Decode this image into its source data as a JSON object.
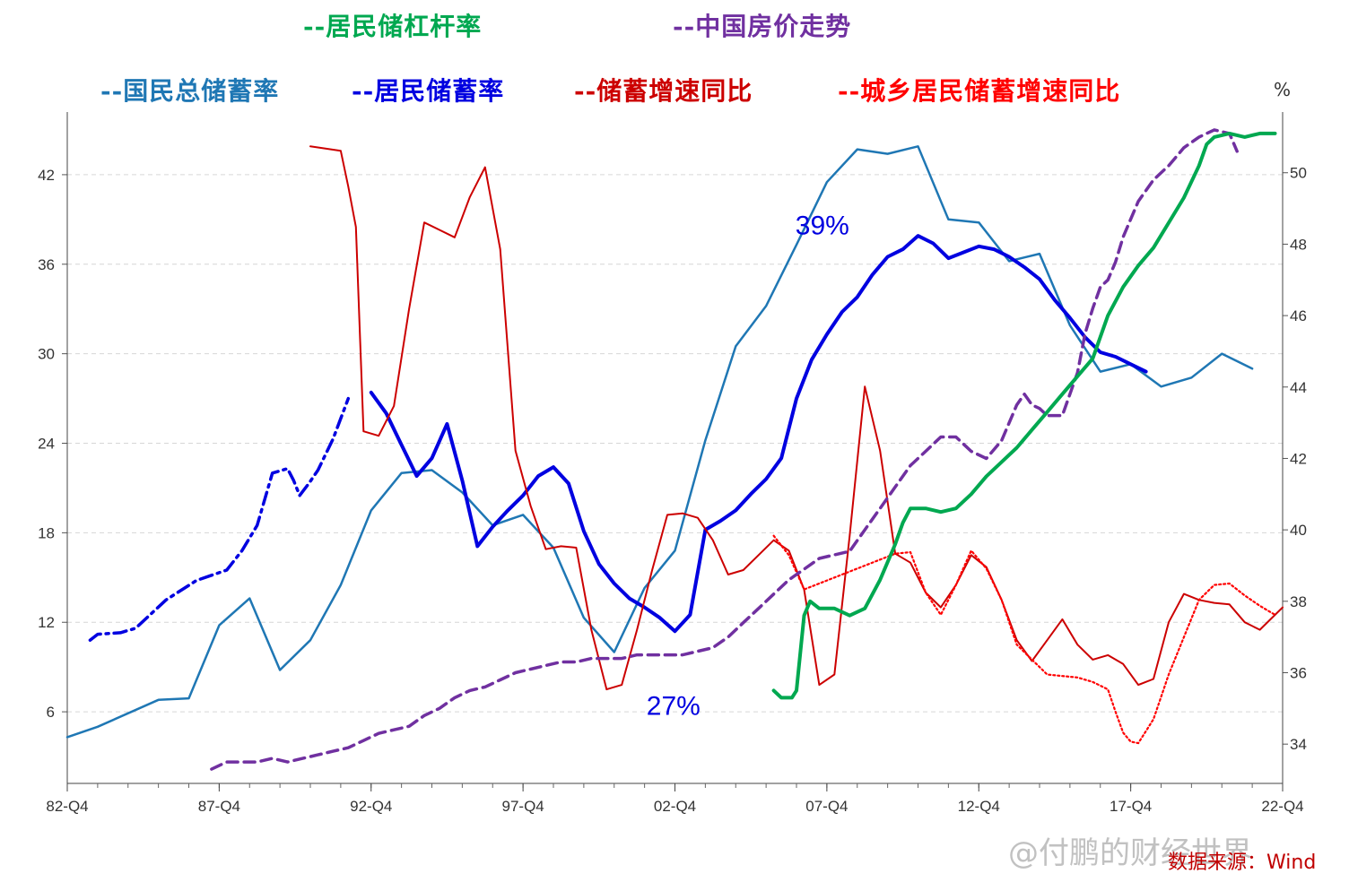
{
  "chart_data": {
    "type": "line",
    "unit": "%",
    "source": "数据来源：Wind",
    "watermark": "@付鹏的财经世界",
    "x_ticks": [
      "82-Q4",
      "87-Q4",
      "92-Q4",
      "97-Q4",
      "02-Q4",
      "07-Q4",
      "12-Q4",
      "17-Q4",
      "22-Q4"
    ],
    "xlim": [
      1982.75,
      2022.75
    ],
    "y_left": {
      "ticks": [
        6,
        12,
        18,
        24,
        30,
        36,
        42
      ],
      "range": [
        1.2,
        46.2
      ]
    },
    "y_right": {
      "ticks": [
        34,
        36,
        38,
        40,
        42,
        44,
        46,
        48,
        50
      ],
      "range": [
        32.9,
        51.7
      ]
    },
    "annotations": [
      {
        "text": "39%",
        "x": 2007.6,
        "y": 38.0,
        "color": "#0000e0"
      },
      {
        "text": "27%",
        "x": 2002.7,
        "y": 5.8,
        "color": "#0000e0"
      }
    ],
    "legend_row1": [
      {
        "label": "--居民储杠杆率",
        "color": "#00a850"
      },
      {
        "label": "--中国房价走势",
        "color": "#7030a0"
      }
    ],
    "legend_row2": [
      {
        "label": "--国民总储蓄率",
        "color": "#1f77b4"
      },
      {
        "label": "--居民储蓄率",
        "color": "#0000e0"
      },
      {
        "label": "--储蓄增速同比",
        "color": "#cc0000"
      },
      {
        "label": "--城乡居民储蓄增速同比",
        "color": "#ff0000"
      }
    ],
    "series": [
      {
        "name": "国民总储蓄率",
        "color": "#1f77b4",
        "axis": "left",
        "dash": "solid",
        "width": 2.5,
        "x": [
          1982.75,
          1983.75,
          1985.75,
          1986.75,
          1987.75,
          1988.75,
          1989.75,
          1990.75,
          1991.75,
          1992.75,
          1993.75,
          1994.75,
          1995.75,
          1996.75,
          1997.75,
          1998.75,
          1999.75,
          2000.75,
          2001.75,
          2002.75,
          2003.75,
          2004.75,
          2005.75,
          2006.75,
          2007.75,
          2008.75,
          2009.75,
          2010.75,
          2011.75,
          2012.75,
          2013.75,
          2014.75,
          2015.75,
          2016.75,
          2017.75,
          2018.75,
          2019.75,
          2020.75,
          2021.75
        ],
        "y": [
          4.3,
          5.0,
          6.8,
          6.9,
          11.8,
          13.6,
          8.8,
          10.8,
          14.5,
          19.5,
          22.0,
          22.2,
          20.7,
          18.5,
          19.2,
          17.0,
          12.3,
          10.0,
          14.3,
          16.8,
          24.2,
          30.5,
          33.2,
          37.3,
          41.5,
          43.7,
          43.4,
          43.9,
          39.0,
          38.8,
          36.2,
          36.7,
          31.9,
          28.8,
          29.3,
          27.8,
          28.4,
          30.0,
          29.0
        ]
      },
      {
        "name": "居民储蓄率（前段）",
        "color": "#0000e0",
        "axis": "left",
        "dash": "dashdot",
        "width": 3.5,
        "x": [
          1983.5,
          1983.75,
          1984.5,
          1985.0,
          1986.0,
          1987.0,
          1988.0,
          1988.5,
          1989.0,
          1989.5,
          1990.0,
          1990.2,
          1990.4,
          1990.7,
          1991.0,
          1991.5,
          1992.0
        ],
        "y": [
          10.8,
          11.2,
          11.3,
          11.6,
          13.5,
          14.8,
          15.5,
          16.8,
          18.5,
          22.0,
          22.3,
          21.5,
          20.5,
          21.3,
          22.2,
          24.3,
          27.0
        ]
      },
      {
        "name": "居民储蓄率",
        "color": "#0000e0",
        "axis": "left",
        "dash": "solid",
        "width": 4,
        "x": [
          1992.75,
          1993.25,
          1993.75,
          1994.25,
          1994.75,
          1995.25,
          1995.75,
          1996.25,
          1996.75,
          1997.25,
          1997.75,
          1998.25,
          1998.75,
          1999.25,
          1999.75,
          2000.25,
          2000.75,
          2001.25,
          2001.75,
          2002.25,
          2002.75,
          2003.25,
          2003.75,
          2004.25,
          2004.75,
          2005.25,
          2005.75,
          2006.25,
          2006.75,
          2007.25,
          2007.75,
          2008.25,
          2008.75,
          2009.25,
          2009.75,
          2010.25,
          2010.75,
          2011.25,
          2011.75,
          2012.25,
          2012.75,
          2013.25,
          2013.75,
          2014.25,
          2014.75,
          2015.25,
          2015.75,
          2016.25,
          2016.75,
          2017.25,
          2017.75,
          2018.25
        ],
        "y": [
          27.4,
          26.0,
          23.9,
          21.8,
          23.0,
          25.3,
          21.5,
          17.1,
          18.4,
          19.5,
          20.5,
          21.8,
          22.4,
          21.3,
          18.1,
          15.9,
          14.6,
          13.6,
          13.0,
          12.3,
          11.4,
          12.5,
          18.2,
          18.8,
          19.5,
          20.6,
          21.6,
          23.0,
          27.0,
          29.6,
          31.3,
          32.8,
          33.8,
          35.3,
          36.5,
          37.0,
          37.9,
          37.4,
          36.4,
          36.8,
          37.2,
          37.0,
          36.5,
          35.8,
          35.0,
          33.6,
          32.4,
          31.1,
          30.1,
          29.8,
          29.3,
          28.8
        ]
      },
      {
        "name": "储蓄增速同比",
        "color": "#cc0000",
        "axis": "left",
        "dash": "solid",
        "width": 2,
        "x": [
          1990.75,
          1991.75,
          1992.0,
          1992.25,
          1992.5,
          1993.0,
          1993.5,
          1994.0,
          1994.5,
          1995.0,
          1995.5,
          1996.0,
          1996.5,
          1997.0,
          1997.5,
          1998.0,
          1998.5,
          1999.0,
          1999.5,
          2000.0,
          2000.5,
          2001.0,
          2001.5,
          2002.0,
          2002.5,
          2003.0,
          2003.5,
          2004.0,
          2004.5,
          2005.0,
          2005.5,
          2006.0,
          2006.5,
          2007.0,
          2007.5,
          2008.0,
          2008.5,
          2009.0,
          2009.5,
          2010.0,
          2010.5,
          2011.0,
          2011.5,
          2012.0,
          2012.5,
          2013.0,
          2013.5,
          2014.0,
          2014.5,
          2015.0,
          2015.5,
          2016.0,
          2016.5,
          2017.0,
          2017.5,
          2018.0,
          2018.5,
          2019.0,
          2019.5,
          2020.0,
          2020.5,
          2021.0,
          2021.5,
          2022.0,
          2022.75
        ],
        "y": [
          43.9,
          43.6,
          41.2,
          38.5,
          24.8,
          24.5,
          26.5,
          33.0,
          38.8,
          38.3,
          37.8,
          40.5,
          42.5,
          37.0,
          23.5,
          19.8,
          16.9,
          17.1,
          17.0,
          11.5,
          7.5,
          7.8,
          11.5,
          15.5,
          19.2,
          19.3,
          19.0,
          17.5,
          15.2,
          15.5,
          16.5,
          17.5,
          16.8,
          14.2,
          7.8,
          8.5,
          17.8,
          27.8,
          23.5,
          16.6,
          16.0,
          14.0,
          13.0,
          14.5,
          16.5,
          15.7,
          13.5,
          10.8,
          9.4,
          10.8,
          12.2,
          10.5,
          9.5,
          9.8,
          9.2,
          7.8,
          8.2,
          12.0,
          13.9,
          13.5,
          13.3,
          13.2,
          12.0,
          11.5,
          13.0
        ]
      },
      {
        "name": "城乡居民储蓄增速同比",
        "color": "#ff0000",
        "axis": "left",
        "dash": "dotted",
        "width": 2.2,
        "x": [
          2006.0,
          2006.5,
          2007.0,
          2010.0,
          2010.5,
          2011.0,
          2011.5,
          2012.0,
          2012.5,
          2013.0,
          2013.5,
          2014.0,
          2014.5,
          2015.0,
          2015.5,
          2016.0,
          2016.5,
          2017.0,
          2017.25,
          2017.5,
          2017.75,
          2018.0,
          2018.5,
          2019.0,
          2019.5,
          2020.0,
          2020.5,
          2021.0,
          2021.5,
          2022.0,
          2022.5
        ],
        "y": [
          17.8,
          16.5,
          14.2,
          16.6,
          16.7,
          14.0,
          12.5,
          14.5,
          16.8,
          15.6,
          13.5,
          10.5,
          9.5,
          8.5,
          8.4,
          8.3,
          8.0,
          7.5,
          6.0,
          4.6,
          4.0,
          3.9,
          5.5,
          8.5,
          11.0,
          13.5,
          14.5,
          14.6,
          13.8,
          13.1,
          12.5
        ]
      },
      {
        "name": "中国房价走势",
        "color": "#7030a0",
        "axis": "right",
        "dash": "dashed",
        "width": 3.5,
        "x": [
          1987.5,
          1988.0,
          1989.0,
          1989.5,
          1990.0,
          1990.5,
          1991.0,
          1991.5,
          1992.0,
          1992.5,
          1993.0,
          1993.5,
          1994.0,
          1994.5,
          1995.0,
          1995.5,
          1996.0,
          1996.5,
          1997.0,
          1997.5,
          1998.0,
          1998.5,
          1999.0,
          1999.5,
          2000.0,
          2000.5,
          2001.0,
          2001.5,
          2002.0,
          2002.5,
          2003.0,
          2003.5,
          2004.0,
          2004.5,
          2005.0,
          2005.5,
          2006.0,
          2006.5,
          2007.0,
          2007.5,
          2008.0,
          2008.5,
          2009.0,
          2009.5,
          2010.0,
          2010.5,
          2011.0,
          2011.5,
          2012.0,
          2012.5,
          2013.0,
          2013.5,
          2014.0,
          2014.25,
          2014.5,
          2014.75,
          2015.0,
          2015.5,
          2016.0,
          2016.25,
          2016.5,
          2016.75,
          2017.0,
          2017.25,
          2017.5,
          2018.0,
          2018.5,
          2019.0,
          2019.5,
          2020.0,
          2020.5,
          2021.0,
          2021.25
        ],
        "y": [
          33.3,
          33.5,
          33.5,
          33.6,
          33.5,
          33.6,
          33.7,
          33.8,
          33.9,
          34.1,
          34.3,
          34.4,
          34.5,
          34.8,
          35.0,
          35.3,
          35.5,
          35.6,
          35.8,
          36.0,
          36.1,
          36.2,
          36.3,
          36.3,
          36.4,
          36.4,
          36.4,
          36.5,
          36.5,
          36.5,
          36.5,
          36.6,
          36.7,
          37.0,
          37.4,
          37.8,
          38.2,
          38.6,
          38.9,
          39.2,
          39.3,
          39.4,
          40.0,
          40.6,
          41.2,
          41.8,
          42.2,
          42.6,
          42.6,
          42.2,
          42.0,
          42.5,
          43.5,
          43.8,
          43.5,
          43.4,
          43.2,
          43.2,
          44.4,
          45.5,
          46.2,
          46.8,
          47.0,
          47.5,
          48.2,
          49.2,
          49.8,
          50.2,
          50.7,
          51.0,
          51.2,
          51.1,
          50.6
        ]
      },
      {
        "name": "居民储杠杆率",
        "color": "#00a850",
        "axis": "right",
        "dash": "solid",
        "width": 4,
        "x": [
          2006.0,
          2006.25,
          2006.6,
          2006.75,
          2007.0,
          2007.2,
          2007.5,
          2008.0,
          2008.5,
          2009.0,
          2009.5,
          2010.0,
          2010.25,
          2010.5,
          2011.0,
          2011.5,
          2012.0,
          2012.5,
          2013.0,
          2013.5,
          2014.0,
          2014.5,
          2015.0,
          2015.5,
          2016.0,
          2016.5,
          2017.0,
          2017.5,
          2018.0,
          2018.5,
          2019.0,
          2019.5,
          2020.0,
          2020.25,
          2020.5,
          2021.0,
          2021.5,
          2022.0,
          2022.5
        ],
        "y": [
          35.5,
          35.3,
          35.3,
          35.5,
          37.6,
          38.0,
          37.8,
          37.8,
          37.6,
          37.8,
          38.6,
          39.6,
          40.2,
          40.6,
          40.6,
          40.5,
          40.6,
          41.0,
          41.5,
          41.9,
          42.3,
          42.8,
          43.3,
          43.8,
          44.3,
          44.8,
          46.0,
          46.8,
          47.4,
          47.9,
          48.6,
          49.3,
          50.2,
          50.8,
          51.0,
          51.1,
          51.0,
          51.1,
          51.1
        ]
      }
    ]
  }
}
